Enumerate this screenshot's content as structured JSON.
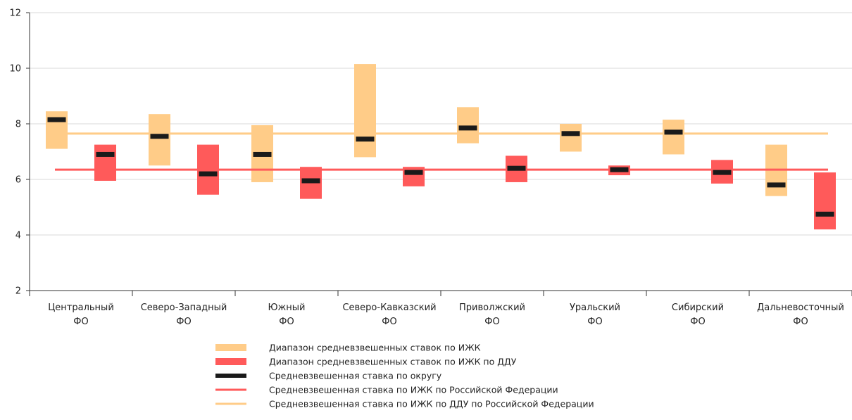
{
  "colors": {
    "izhk_range": "#FFCC88",
    "ddu_range": "#FF5A5A",
    "mark": "#1A1A1A",
    "rf_izhk_line": "#FF5A5A",
    "rf_ddu_line": "#FFCC88",
    "axis": "#333333",
    "grid": "#D9D9D9"
  },
  "chart_data": {
    "type": "range-bar",
    "ylim": [
      2,
      12
    ],
    "yticks": [
      2,
      4,
      6,
      8,
      10,
      12
    ],
    "grid": true,
    "legend_position": "bottom",
    "categories": [
      [
        "Центральный",
        "ФО"
      ],
      [
        "Северо-Западный",
        "ФО"
      ],
      [
        "Южный",
        "ФО"
      ],
      [
        "Северо-Кавказский",
        "ФО"
      ],
      [
        "Приволжский",
        "ФО"
      ],
      [
        "Уральский",
        "ФО"
      ],
      [
        "Сибирский",
        "ФО"
      ],
      [
        "Дальневосточный",
        "ФО"
      ]
    ],
    "izhk_range": [
      [
        7.1,
        8.45
      ],
      [
        6.5,
        8.35
      ],
      [
        5.9,
        7.95
      ],
      [
        6.8,
        10.15
      ],
      [
        7.3,
        8.6
      ],
      [
        7.0,
        8.0
      ],
      [
        6.9,
        8.15
      ],
      [
        5.4,
        7.25
      ]
    ],
    "izhk_mark": [
      8.15,
      7.55,
      6.9,
      7.45,
      7.85,
      7.65,
      7.7,
      5.8
    ],
    "ddu_range": [
      [
        5.95,
        7.25
      ],
      [
        5.45,
        7.25
      ],
      [
        5.3,
        6.45
      ],
      [
        5.75,
        6.45
      ],
      [
        5.9,
        6.85
      ],
      [
        6.15,
        6.5
      ],
      [
        5.85,
        6.7
      ],
      [
        4.2,
        6.25
      ]
    ],
    "ddu_mark": [
      6.9,
      6.2,
      5.95,
      6.25,
      6.4,
      6.35,
      6.25,
      4.75
    ],
    "rf_izhk_rate": 6.35,
    "rf_ddu_rate": 7.65,
    "legend": [
      {
        "key": "izhk_range",
        "type": "box",
        "label": "Диапазон средневзвешенных ставок по ИЖК"
      },
      {
        "key": "ddu_range",
        "type": "box",
        "label": "Диапазон средневзвешенных ставок по ИЖК по ДДУ"
      },
      {
        "key": "mark",
        "type": "dash",
        "label": "Средневзвешенная ставка по округу"
      },
      {
        "key": "rf_izhk_line",
        "type": "line",
        "label": "Средневзвешенная ставка по ИЖК по Российской Федерации"
      },
      {
        "key": "rf_ddu_line",
        "type": "line",
        "label": "Средневзвешенная ставка по ИЖК по ДДУ по Российской Федерации"
      }
    ]
  }
}
